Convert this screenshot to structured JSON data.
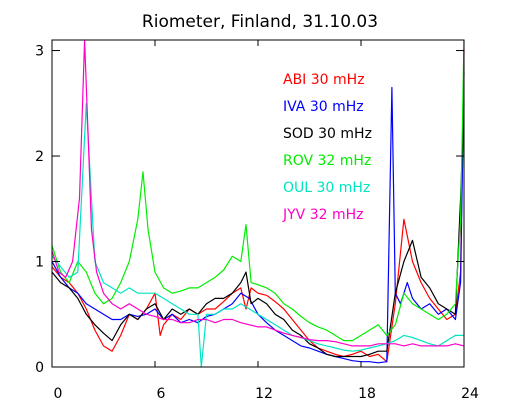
{
  "chart_data": {
    "type": "line",
    "title": "Riometer, Finland, 31.10.03",
    "xlabel": "",
    "ylabel": "",
    "xlim": [
      0,
      24
    ],
    "ylim": [
      0,
      3.1
    ],
    "x_ticks": [
      0,
      6,
      12,
      18,
      24
    ],
    "y_ticks": [
      0,
      1,
      2,
      3
    ],
    "grid": false,
    "legend_position": "top-right",
    "series": [
      {
        "name": "ABI 30 mHz",
        "color": "#ff0000",
        "x": [
          0,
          0.5,
          1,
          1.5,
          2,
          2.5,
          3,
          3.5,
          4,
          4.5,
          5,
          5.5,
          6,
          6.3,
          6.5,
          7,
          7.5,
          8,
          8.5,
          9,
          9.5,
          10,
          10.5,
          11,
          11.3,
          11.6,
          12,
          12.5,
          13,
          13.5,
          14,
          14.5,
          15,
          15.5,
          16,
          16.5,
          17,
          17.5,
          18,
          18.5,
          19,
          19.5,
          20,
          20.5,
          21,
          21.5,
          22,
          22.5,
          23,
          23.5,
          23.8,
          24
        ],
        "y": [
          0.95,
          0.85,
          0.8,
          0.7,
          0.55,
          0.35,
          0.2,
          0.15,
          0.3,
          0.5,
          0.45,
          0.55,
          0.7,
          0.3,
          0.4,
          0.5,
          0.45,
          0.55,
          0.5,
          0.55,
          0.55,
          0.62,
          0.7,
          0.75,
          0.55,
          0.75,
          0.7,
          0.68,
          0.62,
          0.55,
          0.45,
          0.35,
          0.25,
          0.18,
          0.15,
          0.12,
          0.1,
          0.12,
          0.15,
          0.1,
          0.12,
          0.05,
          0.6,
          1.4,
          1.0,
          0.8,
          0.65,
          0.55,
          0.45,
          0.5,
          0.9,
          3.0
        ]
      },
      {
        "name": "IVA 30 mHz",
        "color": "#0000ff",
        "x": [
          0,
          0.5,
          1,
          1.5,
          2,
          2.5,
          3,
          3.5,
          4,
          4.5,
          5,
          5.5,
          6,
          6.5,
          7,
          7.5,
          8,
          8.5,
          9,
          9.5,
          10,
          10.5,
          11,
          11.5,
          12,
          12.5,
          13,
          13.5,
          14,
          14.5,
          15,
          15.5,
          16,
          16.5,
          17,
          17.5,
          18,
          18.5,
          19,
          19.5,
          19.8,
          20,
          20.3,
          20.7,
          21,
          21.5,
          22,
          22.5,
          23,
          23.5,
          23.8,
          24
        ],
        "y": [
          1.0,
          0.85,
          0.75,
          0.7,
          0.6,
          0.55,
          0.5,
          0.45,
          0.45,
          0.5,
          0.48,
          0.5,
          0.55,
          0.45,
          0.5,
          0.42,
          0.45,
          0.42,
          0.48,
          0.5,
          0.55,
          0.6,
          0.7,
          0.65,
          0.5,
          0.42,
          0.35,
          0.3,
          0.25,
          0.2,
          0.18,
          0.15,
          0.12,
          0.1,
          0.08,
          0.06,
          0.05,
          0.05,
          0.04,
          0.05,
          2.65,
          0.7,
          0.6,
          0.8,
          0.65,
          0.55,
          0.6,
          0.5,
          0.55,
          0.45,
          0.8,
          2.8
        ]
      },
      {
        "name": "SOD 30 mHz",
        "color": "#000000",
        "x": [
          0,
          0.5,
          1,
          1.5,
          2,
          2.5,
          3,
          3.5,
          4,
          4.5,
          5,
          5.5,
          6,
          6.5,
          7,
          7.5,
          8,
          8.5,
          9,
          9.5,
          10,
          10.5,
          11,
          11.3,
          11.6,
          12,
          12.5,
          13,
          13.5,
          14,
          14.5,
          15,
          15.5,
          16,
          16.5,
          17,
          17.5,
          18,
          18.5,
          19,
          19.5,
          20,
          20.5,
          21,
          21.5,
          22,
          22.5,
          23,
          23.5,
          23.8,
          24
        ],
        "y": [
          0.9,
          0.8,
          0.75,
          0.65,
          0.5,
          0.4,
          0.32,
          0.25,
          0.4,
          0.5,
          0.45,
          0.55,
          0.6,
          0.45,
          0.55,
          0.5,
          0.55,
          0.5,
          0.6,
          0.65,
          0.65,
          0.7,
          0.8,
          0.9,
          0.6,
          0.65,
          0.6,
          0.5,
          0.45,
          0.35,
          0.3,
          0.22,
          0.18,
          0.12,
          0.1,
          0.1,
          0.1,
          0.1,
          0.12,
          0.15,
          0.15,
          0.7,
          1.0,
          1.2,
          0.85,
          0.75,
          0.6,
          0.55,
          0.5,
          1.6,
          2.5
        ]
      },
      {
        "name": "ROV 32 mHz",
        "color": "#00ee00",
        "x": [
          0,
          0.5,
          1,
          1.5,
          2,
          2.5,
          3,
          3.5,
          4,
          4.5,
          5,
          5.3,
          5.6,
          6,
          6.5,
          7,
          7.5,
          8,
          8.5,
          9,
          9.5,
          10,
          10.5,
          11,
          11.3,
          11.6,
          12,
          12.5,
          13,
          13.5,
          14,
          14.5,
          15,
          15.5,
          16,
          16.5,
          17,
          17.5,
          18,
          18.5,
          19,
          19.5,
          20,
          20.5,
          21,
          21.5,
          22,
          22.5,
          23,
          23.5,
          23.8,
          24
        ],
        "y": [
          1.15,
          0.9,
          0.8,
          1.0,
          0.9,
          0.7,
          0.6,
          0.65,
          0.8,
          1.0,
          1.4,
          1.85,
          1.3,
          0.9,
          0.75,
          0.7,
          0.72,
          0.75,
          0.75,
          0.8,
          0.85,
          0.92,
          1.05,
          1.0,
          1.35,
          0.8,
          0.78,
          0.75,
          0.7,
          0.6,
          0.55,
          0.48,
          0.42,
          0.38,
          0.35,
          0.3,
          0.25,
          0.25,
          0.3,
          0.35,
          0.4,
          0.3,
          0.4,
          0.7,
          0.6,
          0.55,
          0.5,
          0.45,
          0.5,
          0.6,
          1.4,
          3.1
        ]
      },
      {
        "name": "OUL 30 mHz",
        "color": "#00e5c0",
        "x": [
          0,
          0.5,
          1,
          1.5,
          2,
          2.5,
          3,
          3.5,
          4,
          4.5,
          5,
          5.5,
          6,
          6.5,
          7,
          7.5,
          8,
          8.5,
          8.7,
          9,
          9.5,
          10,
          10.5,
          11,
          11.5,
          12,
          12.5,
          13,
          13.5,
          14,
          14.5,
          15,
          15.5,
          16,
          16.5,
          17,
          17.5,
          18,
          18.5,
          19,
          19.5,
          20,
          20.5,
          21,
          21.5,
          22,
          22.5,
          23,
          23.5,
          24
        ],
        "y": [
          1.05,
          0.95,
          0.85,
          0.9,
          2.5,
          1.0,
          0.8,
          0.75,
          0.7,
          0.75,
          0.7,
          0.7,
          0.7,
          0.65,
          0.6,
          0.55,
          0.5,
          0.5,
          0.0,
          0.5,
          0.5,
          0.55,
          0.55,
          0.6,
          0.55,
          0.5,
          0.45,
          0.4,
          0.35,
          0.3,
          0.28,
          0.25,
          0.22,
          0.2,
          0.18,
          0.16,
          0.15,
          0.16,
          0.18,
          0.2,
          0.22,
          0.25,
          0.3,
          0.28,
          0.25,
          0.22,
          0.2,
          0.25,
          0.3,
          0.3
        ]
      },
      {
        "name": "JYV 32 mHz",
        "color": "#ff00c8",
        "x": [
          0,
          0.4,
          0.8,
          1.2,
          1.6,
          1.9,
          2.1,
          2.3,
          2.6,
          3,
          3.5,
          4,
          4.5,
          5,
          5.5,
          6,
          6.5,
          7,
          7.5,
          8,
          8.5,
          9,
          9.5,
          10,
          10.5,
          11,
          11.5,
          12,
          12.5,
          13,
          13.5,
          14,
          14.5,
          15,
          15.5,
          16,
          16.5,
          17,
          17.5,
          18,
          18.5,
          19,
          19.5,
          20,
          20.5,
          21,
          21.5,
          22,
          22.5,
          23,
          23.5,
          24
        ],
        "y": [
          1.1,
          0.9,
          0.85,
          1.0,
          1.6,
          3.1,
          2.2,
          1.3,
          0.9,
          0.7,
          0.6,
          0.55,
          0.6,
          0.55,
          0.5,
          0.48,
          0.45,
          0.45,
          0.42,
          0.42,
          0.45,
          0.45,
          0.42,
          0.45,
          0.45,
          0.42,
          0.4,
          0.38,
          0.38,
          0.35,
          0.32,
          0.3,
          0.28,
          0.26,
          0.25,
          0.25,
          0.24,
          0.22,
          0.2,
          0.2,
          0.2,
          0.22,
          0.22,
          0.22,
          0.2,
          0.22,
          0.2,
          0.2,
          0.2,
          0.2,
          0.22,
          0.2
        ]
      }
    ]
  }
}
